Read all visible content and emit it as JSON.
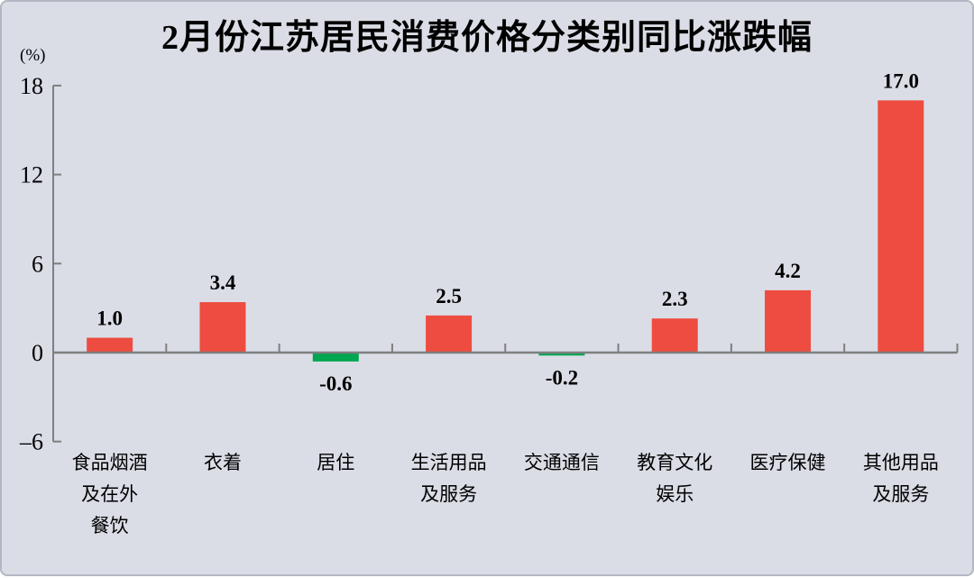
{
  "page": {
    "background": "#dadde6",
    "border": "#b3b7c2"
  },
  "chart_data": {
    "type": "bar",
    "title": "2月份江苏居民消费价格分类别同比涨跌幅",
    "unit_label": "(%)",
    "categories": [
      [
        "食品烟酒",
        "及在外",
        "餐饮"
      ],
      [
        "衣着"
      ],
      [
        "居住"
      ],
      [
        "生活用品",
        "及服务"
      ],
      [
        "交通通信"
      ],
      [
        "教育文化",
        "娱乐"
      ],
      [
        "医疗保健"
      ],
      [
        "其他用品",
        "及服务"
      ]
    ],
    "values": [
      1.0,
      3.4,
      -0.6,
      2.5,
      -0.2,
      2.3,
      4.2,
      17.0
    ],
    "value_labels": [
      "1.0",
      "3.4",
      "-0.6",
      "2.5",
      "-0.2",
      "2.3",
      "4.2",
      "17.0"
    ],
    "y_axis": {
      "ticks": [
        18,
        12,
        6,
        0,
        -6
      ],
      "tick_labels": [
        "18",
        "12",
        "6",
        "0",
        "–6"
      ],
      "min": -6,
      "max": 18
    },
    "colors": {
      "positive_bar": "#ee4c40",
      "negative_bar": "#00a650",
      "axis": "#7f7f7f",
      "text": "#000000"
    },
    "grid": false,
    "legend": false
  }
}
